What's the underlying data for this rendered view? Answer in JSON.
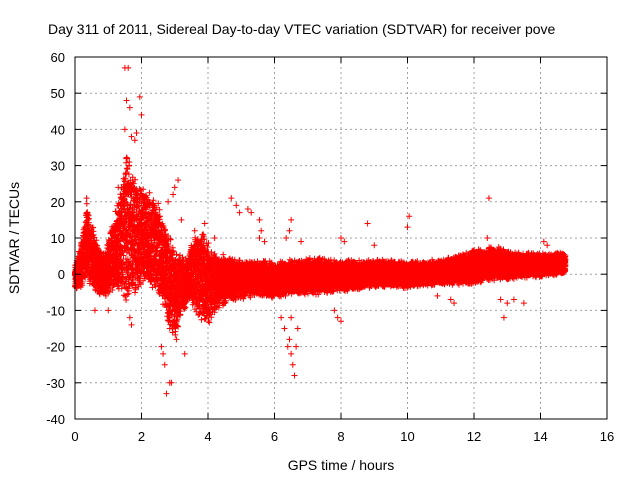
{
  "chart_data": {
    "type": "scatter",
    "title": "Day 311 of 2011, Sidereal Day-to-day VTEC variation (SDTVAR) for receiver pove",
    "xlabel": "GPS time / hours",
    "ylabel": "SDTVAR / TECUs",
    "xlim": [
      0,
      16
    ],
    "ylim": [
      -40,
      60
    ],
    "x_ticks": [
      "0",
      "2",
      "4",
      "6",
      "8",
      "10",
      "12",
      "14",
      "16"
    ],
    "y_ticks": [
      "-40",
      "-30",
      "-20",
      "-10",
      "0",
      "10",
      "20",
      "30",
      "40",
      "50",
      "60"
    ],
    "grid": true,
    "marker": "plus",
    "color": "#ff0000",
    "x_range_of_data": [
      0,
      14.75
    ],
    "envelope": [
      {
        "x": 0.0,
        "lo": -5,
        "hi": 3
      },
      {
        "x": 0.2,
        "lo": -4,
        "hi": 10
      },
      {
        "x": 0.35,
        "lo": -3,
        "hi": 20
      },
      {
        "x": 0.5,
        "lo": -4,
        "hi": 15
      },
      {
        "x": 0.7,
        "lo": -6,
        "hi": 8
      },
      {
        "x": 0.9,
        "lo": -8,
        "hi": 6
      },
      {
        "x": 1.0,
        "lo": -6,
        "hi": 10
      },
      {
        "x": 1.2,
        "lo": -5,
        "hi": 18
      },
      {
        "x": 1.4,
        "lo": -6,
        "hi": 25
      },
      {
        "x": 1.55,
        "lo": -10,
        "hi": 35
      },
      {
        "x": 1.7,
        "lo": -8,
        "hi": 32
      },
      {
        "x": 1.85,
        "lo": -6,
        "hi": 28
      },
      {
        "x": 2.0,
        "lo": -5,
        "hi": 25
      },
      {
        "x": 2.2,
        "lo": -4,
        "hi": 24
      },
      {
        "x": 2.4,
        "lo": -5,
        "hi": 22
      },
      {
        "x": 2.6,
        "lo": -8,
        "hi": 18
      },
      {
        "x": 2.8,
        "lo": -15,
        "hi": 12
      },
      {
        "x": 3.0,
        "lo": -18,
        "hi": 8
      },
      {
        "x": 3.2,
        "lo": -12,
        "hi": 6
      },
      {
        "x": 3.4,
        "lo": -8,
        "hi": 5
      },
      {
        "x": 3.6,
        "lo": -10,
        "hi": 12
      },
      {
        "x": 3.8,
        "lo": -14,
        "hi": 14
      },
      {
        "x": 4.0,
        "lo": -15,
        "hi": 10
      },
      {
        "x": 4.3,
        "lo": -10,
        "hi": 6
      },
      {
        "x": 4.6,
        "lo": -8,
        "hi": 5
      },
      {
        "x": 5.0,
        "lo": -7,
        "hi": 4
      },
      {
        "x": 5.5,
        "lo": -6,
        "hi": 4
      },
      {
        "x": 6.0,
        "lo": -7,
        "hi": 4
      },
      {
        "x": 6.5,
        "lo": -6,
        "hi": 4
      },
      {
        "x": 7.0,
        "lo": -6,
        "hi": 5
      },
      {
        "x": 8.0,
        "lo": -5,
        "hi": 4
      },
      {
        "x": 9.0,
        "lo": -4,
        "hi": 4
      },
      {
        "x": 10.0,
        "lo": -4,
        "hi": 4
      },
      {
        "x": 11.0,
        "lo": -3,
        "hi": 4
      },
      {
        "x": 12.0,
        "lo": -3,
        "hi": 7
      },
      {
        "x": 12.5,
        "lo": -2,
        "hi": 8
      },
      {
        "x": 13.0,
        "lo": -2,
        "hi": 7
      },
      {
        "x": 13.5,
        "lo": -1,
        "hi": 6
      },
      {
        "x": 14.0,
        "lo": -1,
        "hi": 6
      },
      {
        "x": 14.75,
        "lo": 0,
        "hi": 6
      }
    ],
    "outliers": [
      [
        1.5,
        57
      ],
      [
        1.6,
        57
      ],
      [
        1.55,
        48
      ],
      [
        1.65,
        46
      ],
      [
        1.95,
        49
      ],
      [
        1.85,
        39
      ],
      [
        1.7,
        38
      ],
      [
        1.8,
        37
      ],
      [
        2.0,
        44
      ],
      [
        1.5,
        40
      ],
      [
        1.3,
        24
      ],
      [
        0.35,
        21
      ],
      [
        2.75,
        -33
      ],
      [
        2.85,
        -30
      ],
      [
        2.9,
        -30
      ],
      [
        2.7,
        -25
      ],
      [
        2.65,
        -22
      ],
      [
        2.6,
        -20
      ],
      [
        3.3,
        -22
      ],
      [
        3.05,
        -18
      ],
      [
        2.85,
        -15
      ],
      [
        1.7,
        -14
      ],
      [
        1.65,
        -12
      ],
      [
        1.0,
        -10
      ],
      [
        0.6,
        -10
      ],
      [
        3.1,
        26
      ],
      [
        3.0,
        24
      ],
      [
        2.95,
        22
      ],
      [
        2.8,
        20
      ],
      [
        3.2,
        15
      ],
      [
        3.6,
        12
      ],
      [
        3.9,
        14
      ],
      [
        4.2,
        10
      ],
      [
        4.7,
        21
      ],
      [
        4.85,
        19
      ],
      [
        4.95,
        17
      ],
      [
        5.2,
        18
      ],
      [
        5.3,
        17
      ],
      [
        5.55,
        15
      ],
      [
        5.55,
        10
      ],
      [
        5.6,
        12
      ],
      [
        5.7,
        9
      ],
      [
        6.35,
        10
      ],
      [
        6.45,
        12
      ],
      [
        6.5,
        15
      ],
      [
        6.8,
        9
      ],
      [
        6.3,
        -15
      ],
      [
        6.4,
        -20
      ],
      [
        6.5,
        -22
      ],
      [
        6.55,
        -25
      ],
      [
        6.6,
        -28
      ],
      [
        6.65,
        -20
      ],
      [
        6.45,
        -18
      ],
      [
        6.2,
        -12
      ],
      [
        6.5,
        -12
      ],
      [
        6.7,
        -15
      ],
      [
        7.8,
        -10
      ],
      [
        7.9,
        -12
      ],
      [
        8.0,
        -13
      ],
      [
        8.0,
        10
      ],
      [
        8.1,
        9
      ],
      [
        8.8,
        14
      ],
      [
        9.0,
        8
      ],
      [
        10.05,
        16
      ],
      [
        10.0,
        13
      ],
      [
        12.45,
        21
      ],
      [
        12.4,
        10
      ],
      [
        12.8,
        -7
      ],
      [
        12.9,
        -12
      ],
      [
        13.0,
        -8
      ],
      [
        13.2,
        -7
      ],
      [
        13.5,
        -8
      ],
      [
        14.1,
        9
      ],
      [
        14.2,
        8
      ],
      [
        11.3,
        -7
      ],
      [
        11.4,
        -8
      ],
      [
        10.9,
        -6
      ]
    ]
  }
}
